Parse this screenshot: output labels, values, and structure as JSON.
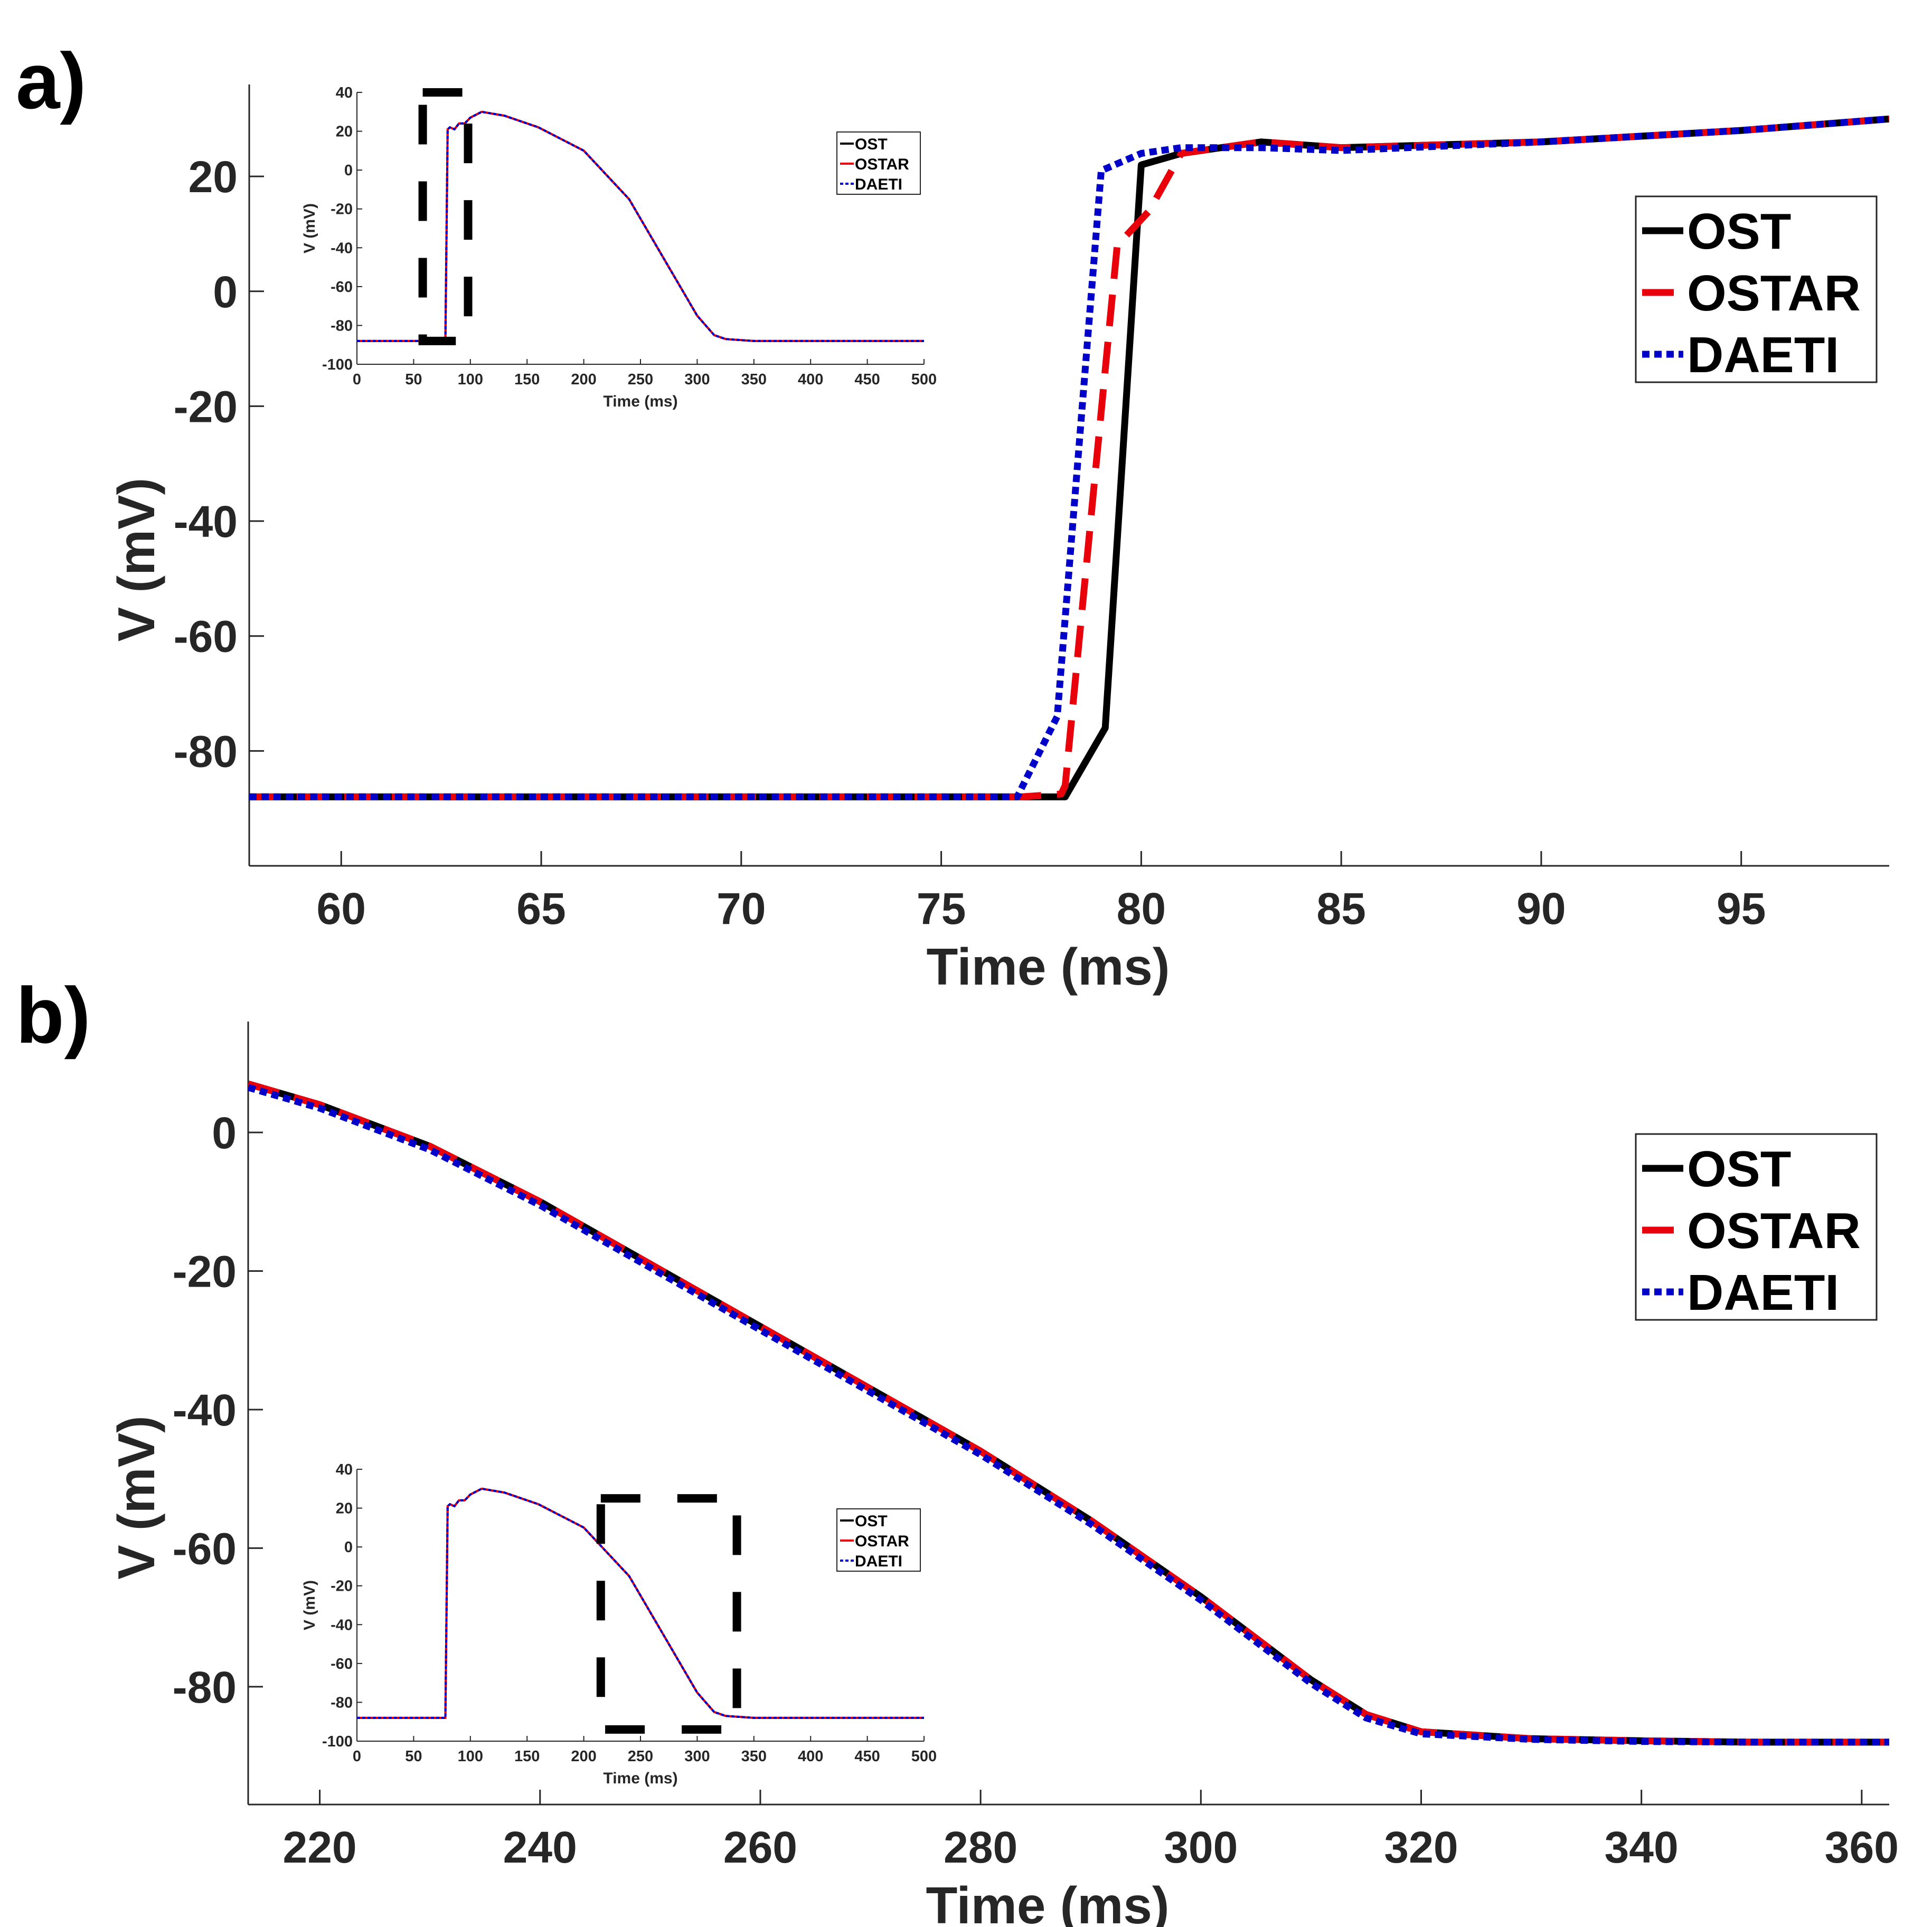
{
  "panels": [
    {
      "label": "a)",
      "legend": [
        "OST",
        "OSTAR",
        "DAETI"
      ],
      "series_style": {
        "OST": {
          "color": "#000000",
          "dash": "solid"
        },
        "OSTAR": {
          "color": "#e8000b",
          "dash": "dashed"
        },
        "DAETI": {
          "color": "#0000c8",
          "dash": "dotted"
        }
      }
    },
    {
      "label": "b)",
      "legend": [
        "OST",
        "OSTAR",
        "DAETI"
      ]
    }
  ],
  "chart_data": [
    {
      "type": "line",
      "title": "",
      "xlabel": "Time (ms)",
      "ylabel": "V (mV)",
      "xlim": [
        57.7,
        98.7
      ],
      "ylim": [
        -100,
        36
      ],
      "xticks": [
        60,
        65,
        70,
        75,
        80,
        85,
        90,
        95
      ],
      "yticks": [
        -80,
        -60,
        -40,
        -20,
        0,
        20
      ],
      "legend_position": "top-right",
      "series": [
        {
          "name": "OST",
          "x": [
            57.7,
            77,
            78.1,
            79.1,
            80,
            81,
            83,
            85,
            90,
            95,
            98.7
          ],
          "y": [
            -88,
            -88,
            -88,
            -76,
            22,
            24,
            26,
            25,
            26,
            28,
            30
          ]
        },
        {
          "name": "OSTAR",
          "x": [
            57.7,
            77,
            78,
            78.1,
            79.4,
            80.2,
            81,
            83,
            85,
            90,
            95,
            98.7
          ],
          "y": [
            -88,
            -88,
            -87.5,
            -86,
            8,
            14,
            24,
            26,
            25,
            26,
            28,
            30
          ]
        },
        {
          "name": "DAETI",
          "x": [
            57.7,
            76.9,
            77.9,
            79,
            80,
            81,
            83,
            85,
            90,
            95,
            98.7
          ],
          "y": [
            -88,
            -88,
            -74,
            21,
            24,
            25,
            25,
            24.5,
            26,
            28,
            30
          ]
        }
      ],
      "inset": {
        "xlabel": "Time (ms)",
        "ylabel": "V (mV)",
        "xlim": [
          0,
          500
        ],
        "ylim": [
          -100,
          40
        ],
        "xticks": [
          0,
          50,
          100,
          150,
          200,
          250,
          300,
          350,
          400,
          450,
          500
        ],
        "yticks": [
          -100,
          -80,
          -60,
          -40,
          -20,
          0,
          20,
          40
        ],
        "legend": [
          "OST",
          "OSTAR",
          "DAETI"
        ],
        "zoom_box": [
          58,
          98,
          -88,
          40
        ],
        "series": [
          {
            "name": "OST",
            "x": [
              0,
              78,
              80,
              82,
              86,
              90,
              95,
              100,
              110,
              130,
              160,
              200,
              240,
              270,
              300,
              315,
              325,
              350,
              400,
              500
            ],
            "y": [
              -88,
              -88,
              21,
              22,
              21,
              24,
              24,
              27,
              30,
              28,
              22,
              10,
              -15,
              -45,
              -75,
              -85,
              -87,
              -88,
              -88,
              -88
            ]
          },
          {
            "name": "OSTAR",
            "x": [
              0,
              78,
              80,
              82,
              86,
              90,
              95,
              100,
              110,
              130,
              160,
              200,
              240,
              270,
              300,
              315,
              325,
              350,
              400,
              500
            ],
            "y": [
              -88,
              -88,
              21,
              22,
              21,
              24,
              24,
              27,
              30,
              28,
              22,
              10,
              -15,
              -45,
              -75,
              -85,
              -87,
              -88,
              -88,
              -88
            ]
          },
          {
            "name": "DAETI",
            "x": [
              0,
              78,
              80,
              82,
              86,
              90,
              95,
              100,
              110,
              130,
              160,
              200,
              240,
              270,
              300,
              315,
              325,
              350,
              400,
              500
            ],
            "y": [
              -88,
              -88,
              21,
              22,
              21,
              24,
              24,
              27,
              30,
              28,
              22,
              10,
              -15,
              -45,
              -75,
              -85,
              -87,
              -88,
              -88,
              -88
            ]
          }
        ]
      }
    },
    {
      "type": "line",
      "title": "",
      "xlabel": "Time (ms)",
      "ylabel": "V (mV)",
      "xlim": [
        213.5,
        362.5
      ],
      "ylim": [
        -97,
        16
      ],
      "xticks": [
        220,
        240,
        260,
        280,
        300,
        320,
        340,
        360
      ],
      "yticks": [
        -80,
        -60,
        -40,
        -20,
        0
      ],
      "legend_position": "top-right",
      "series": [
        {
          "name": "OST",
          "x": [
            213.5,
            220,
            230,
            240,
            250,
            260,
            270,
            280,
            290,
            300,
            305,
            310,
            315,
            320,
            330,
            340,
            350,
            362.5
          ],
          "y": [
            7,
            4,
            -2,
            -10,
            -19,
            -28,
            -37,
            -46,
            -56,
            -67,
            -73,
            -79,
            -84,
            -86.5,
            -87.5,
            -87.8,
            -88,
            -88
          ]
        },
        {
          "name": "OSTAR",
          "x": [
            213.5,
            220,
            230,
            240,
            250,
            260,
            270,
            280,
            290,
            300,
            305,
            310,
            315,
            320,
            330,
            340,
            350,
            362.5
          ],
          "y": [
            7,
            4,
            -2,
            -10,
            -19,
            -28,
            -37,
            -46,
            -56,
            -67,
            -73,
            -79,
            -84,
            -86.5,
            -87.5,
            -87.8,
            -88,
            -88
          ]
        },
        {
          "name": "DAETI",
          "x": [
            213.5,
            220,
            230,
            240,
            250,
            260,
            270,
            280,
            290,
            300,
            305,
            310,
            315,
            320,
            330,
            340,
            350,
            362.5
          ],
          "y": [
            6.5,
            3.5,
            -2.5,
            -10.5,
            -19.5,
            -28.5,
            -37.5,
            -46.5,
            -56.5,
            -67.5,
            -73.5,
            -79.5,
            -84.5,
            -86.8,
            -87.6,
            -87.9,
            -88,
            -88
          ]
        }
      ],
      "inset": {
        "xlabel": "Time (ms)",
        "ylabel": "V (mV)",
        "xlim": [
          0,
          500
        ],
        "ylim": [
          -100,
          40
        ],
        "xticks": [
          0,
          50,
          100,
          150,
          200,
          250,
          300,
          350,
          400,
          450,
          500
        ],
        "yticks": [
          -100,
          -80,
          -60,
          -40,
          -20,
          0,
          20,
          40
        ],
        "legend": [
          "OST",
          "OSTAR",
          "DAETI"
        ],
        "zoom_box": [
          215,
          335,
          -94,
          25
        ],
        "series": [
          {
            "name": "OST",
            "x": [
              0,
              78,
              80,
              82,
              86,
              90,
              95,
              100,
              110,
              130,
              160,
              200,
              240,
              270,
              300,
              315,
              325,
              350,
              400,
              500
            ],
            "y": [
              -88,
              -88,
              21,
              22,
              21,
              24,
              24,
              27,
              30,
              28,
              22,
              10,
              -15,
              -45,
              -75,
              -85,
              -87,
              -88,
              -88,
              -88
            ]
          },
          {
            "name": "OSTAR",
            "x": [
              0,
              78,
              80,
              82,
              86,
              90,
              95,
              100,
              110,
              130,
              160,
              200,
              240,
              270,
              300,
              315,
              325,
              350,
              400,
              500
            ],
            "y": [
              -88,
              -88,
              21,
              22,
              21,
              24,
              24,
              27,
              30,
              28,
              22,
              10,
              -15,
              -45,
              -75,
              -85,
              -87,
              -88,
              -88,
              -88
            ]
          },
          {
            "name": "DAETI",
            "x": [
              0,
              78,
              80,
              82,
              86,
              90,
              95,
              100,
              110,
              130,
              160,
              200,
              240,
              270,
              300,
              315,
              325,
              350,
              400,
              500
            ],
            "y": [
              -88,
              -88,
              21,
              22,
              21,
              24,
              24,
              27,
              30,
              28,
              22,
              10,
              -15,
              -45,
              -75,
              -85,
              -87,
              -88,
              -88,
              -88
            ]
          }
        ]
      }
    }
  ]
}
